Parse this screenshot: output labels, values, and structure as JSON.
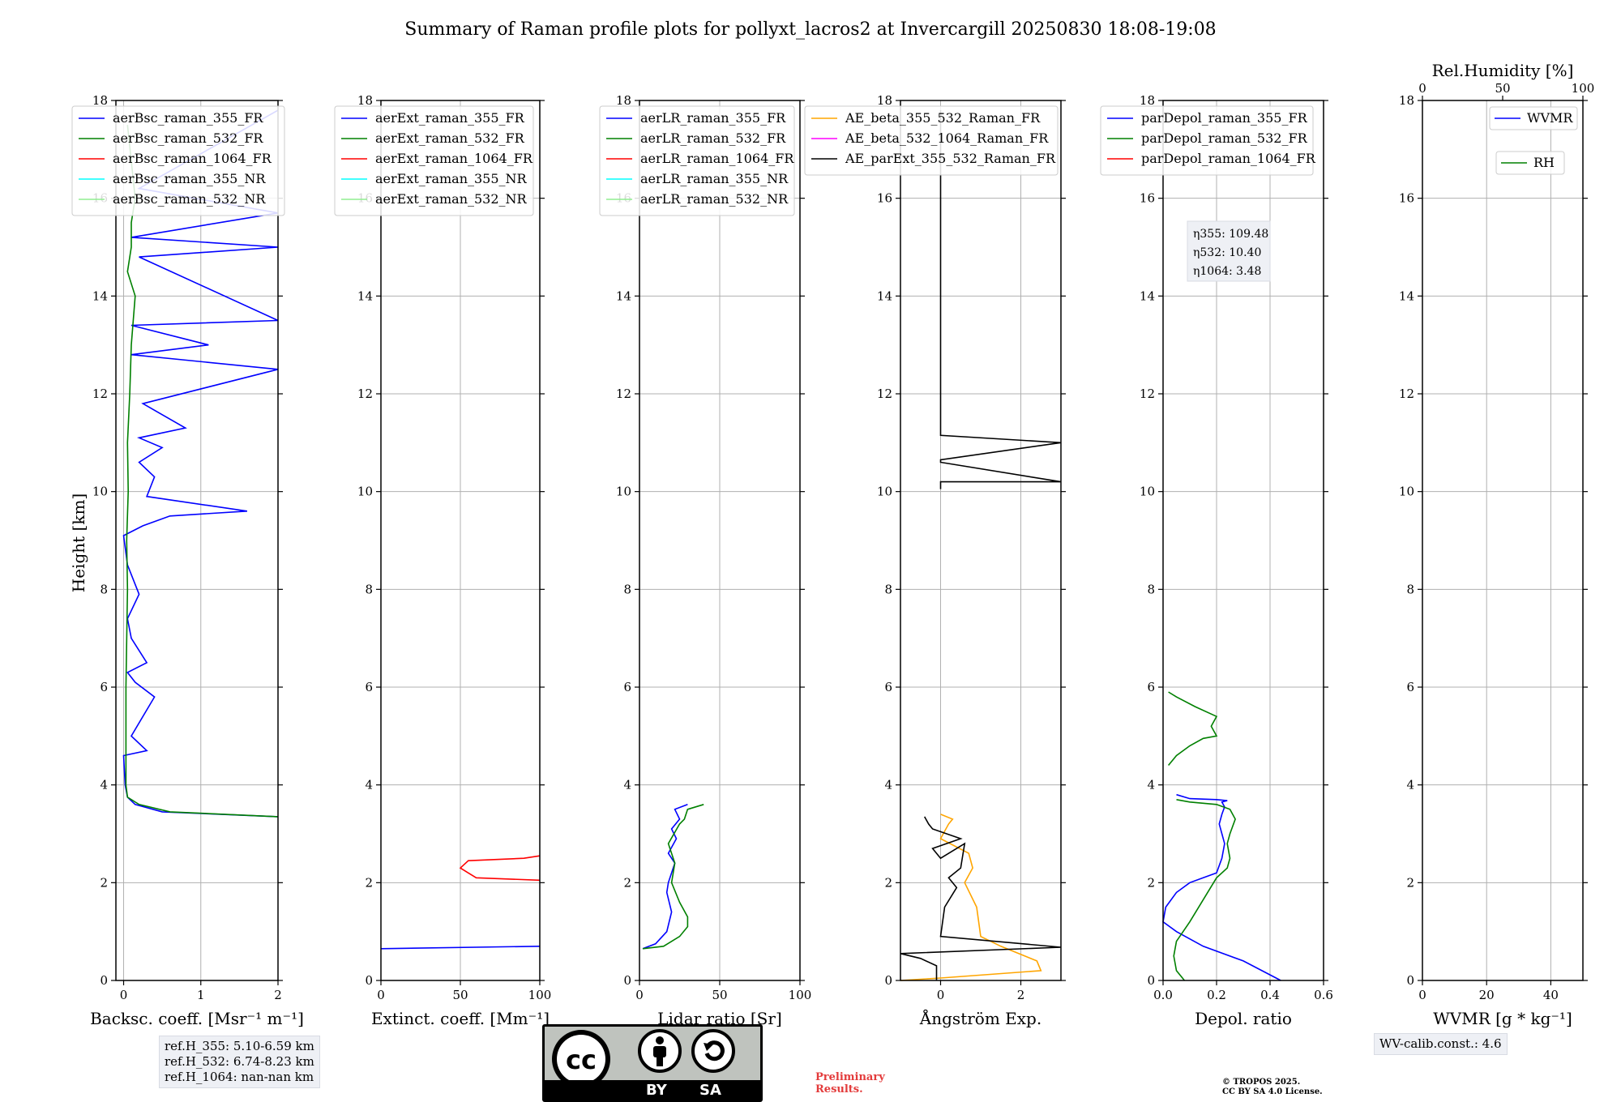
{
  "figure": {
    "title": "Summary of Raman profile plots for pollyxt_lacros2 at Invercargill 20250830 18:08-19:08",
    "ylabel": "Height [km]"
  },
  "chart_data": [
    {
      "type": "line",
      "name": "backscatter",
      "xlabel": "Backsc. coeff. [Msr⁻¹ m⁻¹]",
      "xlim": [
        -0.1,
        2.0
      ],
      "xticks": [
        "0",
        "1",
        "2"
      ],
      "ylim": [
        0,
        18
      ],
      "yticks": [
        "0",
        "2",
        "4",
        "6",
        "8",
        "10",
        "12",
        "14",
        "16",
        "18"
      ],
      "legend": [
        "aerBsc_raman_355_FR",
        "aerBsc_raman_532_FR",
        "aerBsc_raman_1064_FR",
        "aerBsc_raman_355_NR",
        "aerBsc_raman_532_NR"
      ],
      "legend_colors": [
        "#0000ff",
        "#008000",
        "#ff0000",
        "#00ffff",
        "#90ee90"
      ],
      "series": [
        {
          "name": "aerBsc_raman_355_FR",
          "color": "#0000ff",
          "x": [
            2.0,
            0.5,
            0.15,
            0.05,
            0.02,
            0.0,
            0.3,
            0.1,
            0.4,
            0.15,
            0.05,
            0.3,
            0.1,
            0.05,
            0.2,
            0.05,
            0.0,
            0.25,
            0.6,
            1.6,
            0.3,
            0.4,
            0.2,
            0.5,
            0.2,
            0.8,
            0.25,
            2.0,
            0.1,
            1.1,
            0.1,
            2.0,
            0.2,
            2.0,
            0.1,
            2.0,
            0.2,
            2.0
          ],
          "y": [
            3.35,
            3.45,
            3.6,
            3.75,
            4.0,
            4.6,
            4.7,
            5.0,
            5.8,
            6.1,
            6.3,
            6.5,
            7.0,
            7.4,
            7.9,
            8.5,
            9.1,
            9.3,
            9.5,
            9.6,
            9.9,
            10.3,
            10.6,
            10.9,
            11.1,
            11.3,
            11.8,
            12.5,
            12.8,
            13.0,
            13.4,
            13.5,
            14.8,
            15.0,
            15.2,
            15.7,
            16.2,
            17.8
          ]
        },
        {
          "name": "aerBsc_raman_532_FR",
          "color": "#008000",
          "x": [
            2.0,
            0.6,
            0.2,
            0.05,
            0.03,
            0.03,
            0.05,
            0.04,
            0.06,
            0.05,
            0.08,
            0.1,
            0.15,
            0.05,
            0.1,
            0.1,
            0.15,
            0.05
          ],
          "y": [
            3.35,
            3.45,
            3.6,
            3.75,
            4.0,
            6.0,
            8.0,
            9.0,
            10.0,
            11.0,
            12.0,
            13.0,
            14.0,
            14.5,
            15.0,
            15.5,
            16.0,
            17.5
          ]
        }
      ]
    },
    {
      "type": "line",
      "name": "extinction",
      "xlabel": "Extinct. coeff. [Mm⁻¹]",
      "xlim": [
        0,
        100
      ],
      "xticks": [
        "0",
        "50",
        "100"
      ],
      "ylim": [
        0,
        18
      ],
      "yticks": [
        "0",
        "2",
        "4",
        "6",
        "8",
        "10",
        "12",
        "14",
        "16",
        "18"
      ],
      "legend": [
        "aerExt_raman_355_FR",
        "aerExt_raman_532_FR",
        "aerExt_raman_1064_FR",
        "aerExt_raman_355_NR",
        "aerExt_raman_532_NR"
      ],
      "legend_colors": [
        "#0000ff",
        "#008000",
        "#ff0000",
        "#00ffff",
        "#90ee90"
      ],
      "series": [
        {
          "name": "aerExt_raman_1064_FR",
          "color": "#ff0000",
          "x": [
            100,
            60,
            55,
            50,
            55,
            90,
            100
          ],
          "y": [
            2.05,
            2.1,
            2.2,
            2.3,
            2.45,
            2.5,
            2.55
          ]
        },
        {
          "name": "aerExt_raman_355_FR",
          "color": "#0000ff",
          "x": [
            0,
            100
          ],
          "y": [
            0.65,
            0.7
          ]
        }
      ]
    },
    {
      "type": "line",
      "name": "lidar_ratio",
      "xlabel": "Lidar ratio [Sr]",
      "xlim": [
        0,
        100
      ],
      "xticks": [
        "0",
        "50",
        "100"
      ],
      "ylim": [
        0,
        18
      ],
      "yticks": [
        "0",
        "2",
        "4",
        "6",
        "8",
        "10",
        "12",
        "14",
        "16",
        "18"
      ],
      "legend": [
        "aerLR_raman_355_FR",
        "aerLR_raman_532_FR",
        "aerLR_raman_1064_FR",
        "aerLR_raman_355_NR",
        "aerLR_raman_532_NR"
      ],
      "legend_colors": [
        "#0000ff",
        "#008000",
        "#ff0000",
        "#00ffff",
        "#90ee90"
      ],
      "series": [
        {
          "name": "aerLR_raman_355_FR",
          "color": "#0000ff",
          "x": [
            2,
            10,
            17,
            20,
            17,
            18,
            20,
            22,
            18,
            23,
            20,
            25,
            22,
            30
          ],
          "y": [
            0.65,
            0.75,
            1.0,
            1.4,
            1.8,
            2.0,
            2.2,
            2.4,
            2.6,
            2.9,
            3.1,
            3.3,
            3.5,
            3.6
          ]
        },
        {
          "name": "aerLR_raman_532_FR",
          "color": "#008000",
          "x": [
            2,
            15,
            25,
            30,
            30,
            25,
            20,
            22,
            18,
            25,
            28,
            30,
            40
          ],
          "y": [
            0.65,
            0.7,
            0.9,
            1.1,
            1.3,
            1.6,
            2.0,
            2.4,
            2.8,
            3.2,
            3.3,
            3.5,
            3.6
          ]
        }
      ]
    },
    {
      "type": "line",
      "name": "angstrom",
      "xlabel": "Ångström Exp.",
      "xlim": [
        -1,
        3
      ],
      "xticks": [
        "0",
        "2"
      ],
      "ylim": [
        0,
        18
      ],
      "yticks": [
        "0",
        "2",
        "4",
        "6",
        "8",
        "10",
        "12",
        "14",
        "16",
        "18"
      ],
      "legend": [
        "AE_beta_355_532_Raman_FR",
        "AE_beta_532_1064_Raman_FR",
        "AE_parExt_355_532_Raman_FR"
      ],
      "legend_colors": [
        "#ffa500",
        "#ff00ff",
        "#000000"
      ],
      "series": [
        {
          "name": "AE_beta_355_532_Raman_FR",
          "color": "#ffa500",
          "x": [
            -1.0,
            0.0,
            2.5,
            2.4,
            1.5,
            1.0,
            0.9,
            0.6,
            0.8,
            0.7,
            0.0,
            0.2,
            0.3,
            0.0
          ],
          "y": [
            0.0,
            0.05,
            0.2,
            0.4,
            0.7,
            0.9,
            1.5,
            2.0,
            2.3,
            2.6,
            2.9,
            3.2,
            3.3,
            3.4
          ]
        },
        {
          "name": "AE_parExt_355_532_Raman_FR",
          "color": "#000000",
          "x": [
            -0.1,
            -0.1,
            -0.5,
            -1.0,
            3.0,
            0.0,
            0.1,
            0.4,
            0.2,
            0.5,
            0.6,
            0.0,
            -0.2,
            0.5,
            -0.2,
            -0.3,
            -0.4
          ],
          "y": [
            0.0,
            0.3,
            0.45,
            0.55,
            0.68,
            0.9,
            1.5,
            1.9,
            2.1,
            2.3,
            2.8,
            2.5,
            2.7,
            2.9,
            3.1,
            3.2,
            3.35
          ]
        },
        {
          "name": "AE_parExt_355_532_Raman_FR_upper",
          "color": "#000000",
          "x": [
            0.0,
            0.0,
            3.0,
            0.0,
            0.0,
            3.0,
            0.0,
            0.0
          ],
          "y": [
            10.05,
            10.2,
            10.2,
            10.6,
            10.65,
            11.0,
            11.15,
            17.8
          ]
        }
      ]
    },
    {
      "type": "line",
      "name": "depolarization",
      "xlabel": "Depol. ratio",
      "xlim": [
        0.0,
        0.6
      ],
      "xticks": [
        "0.0",
        "0.2",
        "0.4",
        "0.6"
      ],
      "ylim": [
        0,
        18
      ],
      "yticks": [
        "0",
        "2",
        "4",
        "6",
        "8",
        "10",
        "12",
        "14",
        "16",
        "18"
      ],
      "legend": [
        "parDepol_raman_355_FR",
        "parDepol_raman_532_FR",
        "parDepol_raman_1064_FR"
      ],
      "legend_colors": [
        "#0000ff",
        "#008000",
        "#ff0000"
      ],
      "annotation": [
        "η355: 109.48",
        "η532: 10.40",
        "η1064: 3.48"
      ],
      "series": [
        {
          "name": "parDepol_raman_355_FR",
          "color": "#0000ff",
          "x": [
            0.44,
            0.3,
            0.15,
            0.05,
            0.0,
            0.01,
            0.05,
            0.1,
            0.15,
            0.2,
            0.22,
            0.23,
            0.22,
            0.21,
            0.22,
            0.23,
            0.22,
            0.24,
            0.2,
            0.1,
            0.05
          ],
          "y": [
            0.0,
            0.4,
            0.7,
            1.0,
            1.2,
            1.5,
            1.8,
            2.0,
            2.1,
            2.2,
            2.5,
            2.8,
            3.0,
            3.2,
            3.4,
            3.55,
            3.65,
            3.68,
            3.7,
            3.72,
            3.8
          ]
        },
        {
          "name": "parDepol_raman_532_FR",
          "color": "#008000",
          "x": [
            0.08,
            0.05,
            0.04,
            0.05,
            0.1,
            0.2,
            0.24,
            0.25,
            0.24,
            0.25,
            0.27,
            0.25,
            0.2,
            0.1,
            0.05
          ],
          "y": [
            0.0,
            0.2,
            0.5,
            0.8,
            1.2,
            2.1,
            2.3,
            2.5,
            2.8,
            3.0,
            3.3,
            3.5,
            3.6,
            3.65,
            3.7
          ]
        },
        {
          "name": "parDepol_raman_532_FR_layer",
          "color": "#008000",
          "x": [
            0.02,
            0.05,
            0.1,
            0.15,
            0.2,
            0.18,
            0.2,
            0.12,
            0.05,
            0.02
          ],
          "y": [
            4.4,
            4.6,
            4.8,
            4.95,
            5.0,
            5.2,
            5.4,
            5.6,
            5.8,
            5.9
          ]
        }
      ]
    },
    {
      "type": "line",
      "name": "humidity",
      "xlabel": "WVMR [g * kg⁻¹]",
      "xlim": [
        0,
        50
      ],
      "xticks": [
        "0",
        "20",
        "40"
      ],
      "x2label": "Rel.Humidity [%]",
      "x2lim": [
        0,
        100
      ],
      "x2ticks": [
        "0",
        "50",
        "100"
      ],
      "ylim": [
        0,
        18
      ],
      "yticks": [
        "0",
        "2",
        "4",
        "6",
        "8",
        "10",
        "12",
        "14",
        "16",
        "18"
      ],
      "legend": [
        "WVMR",
        "RH"
      ],
      "legend_colors": [
        "#0000ff",
        "#008000"
      ],
      "series": []
    }
  ],
  "info": {
    "ref_heights": [
      "ref.H_355: 5.10-6.59 km",
      "ref.H_532: 6.74-8.23 km",
      "ref.H_1064: nan-nan km"
    ],
    "wv_calib": "WV-calib.const.: 4.6",
    "preliminary": [
      "Preliminary",
      "Results."
    ],
    "tropos": [
      "© TROPOS 2025.",
      "CC BY SA 4.0 License."
    ]
  },
  "license": {
    "badge_text": "cc",
    "by": "BY",
    "sa": "SA"
  }
}
